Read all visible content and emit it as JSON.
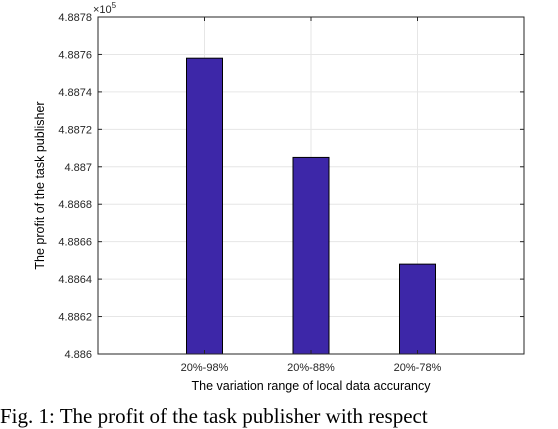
{
  "chart_data": {
    "type": "bar",
    "categories": [
      "20%-98%",
      "20%-88%",
      "20%-78%"
    ],
    "values": [
      488758,
      488705,
      488648
    ],
    "xlabel": "The variation range of local data accurancy",
    "ylabel": "The profit of the task publisher",
    "ylim": [
      488600,
      488780
    ],
    "yticks": [
      4.886,
      4.8862,
      4.8864,
      4.8866,
      4.8868,
      4.887,
      4.8872,
      4.8874,
      4.8876,
      4.8878
    ],
    "ytick_labels": [
      "4.886",
      "4.8862",
      "4.8864",
      "4.8866",
      "4.8868",
      "4.887",
      "4.8872",
      "4.8874",
      "4.8876",
      "4.8878"
    ],
    "y_exponent_base": "×10",
    "y_exponent_power": "5",
    "grid": true,
    "bar_color": "#3d27a8",
    "bar_edge_color": "#000000",
    "grid_color": "#e6e6e6"
  },
  "caption": "Fig. 1: The profit of the task publisher with respect"
}
